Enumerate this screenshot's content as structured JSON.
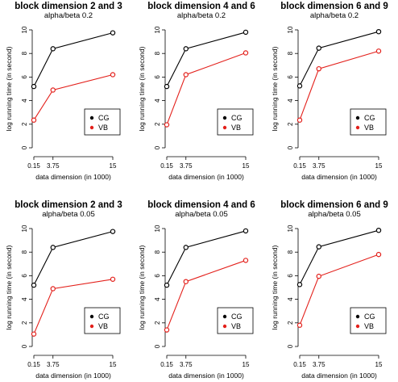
{
  "series_colors": {
    "CG": "#000000",
    "VB": "#e3201b"
  },
  "chart_data": [
    {
      "type": "line",
      "title": "block dimension 2 and 3",
      "subtitle": "alpha/beta 0.2",
      "xlabel": "data dimension (in 1000)",
      "ylabel": "log running time (in second)",
      "x": [
        0.15,
        3.75,
        15
      ],
      "x_ticks": [
        0.15,
        3.75,
        15
      ],
      "x_tick_labels": [
        "0.15",
        "3.75",
        "15"
      ],
      "y_ticks": [
        0,
        2,
        4,
        6,
        8,
        10
      ],
      "y_tick_labels": [
        "0",
        "2",
        "4",
        "6",
        "8",
        "10"
      ],
      "ylim": [
        0,
        10
      ],
      "legend_position": "bottom-right",
      "series": [
        {
          "name": "CG",
          "values": [
            5.2,
            8.4,
            9.75
          ]
        },
        {
          "name": "VB",
          "values": [
            2.35,
            4.9,
            6.2
          ]
        }
      ]
    },
    {
      "type": "line",
      "title": "block dimension 4 and 6",
      "subtitle": "alpha/beta 0.2",
      "xlabel": "data dimension (in 1000)",
      "ylabel": "log running time (in second)",
      "x": [
        0.15,
        3.75,
        15
      ],
      "x_ticks": [
        0.15,
        3.75,
        15
      ],
      "x_tick_labels": [
        "0.15",
        "3.75",
        "15"
      ],
      "y_ticks": [
        0,
        2,
        4,
        6,
        8,
        10
      ],
      "y_tick_labels": [
        "0",
        "2",
        "4",
        "6",
        "8",
        "10"
      ],
      "ylim": [
        0,
        10
      ],
      "legend_position": "bottom-right",
      "series": [
        {
          "name": "CG",
          "values": [
            5.2,
            8.4,
            9.8
          ]
        },
        {
          "name": "VB",
          "values": [
            1.95,
            6.2,
            8.05
          ]
        }
      ]
    },
    {
      "type": "line",
      "title": "block dimension 6 and 9",
      "subtitle": "alpha/beta 0.2",
      "xlabel": "data dimension (in 1000)",
      "ylabel": "log running time (in second)",
      "x": [
        0.15,
        3.75,
        15
      ],
      "x_ticks": [
        0.15,
        3.75,
        15
      ],
      "x_tick_labels": [
        "0.15",
        "3.75",
        "15"
      ],
      "y_ticks": [
        0,
        2,
        4,
        6,
        8,
        10
      ],
      "y_tick_labels": [
        "0",
        "2",
        "4",
        "6",
        "8",
        "10"
      ],
      "ylim": [
        0,
        10
      ],
      "legend_position": "bottom-right",
      "series": [
        {
          "name": "CG",
          "values": [
            5.25,
            8.45,
            9.85
          ]
        },
        {
          "name": "VB",
          "values": [
            2.35,
            6.7,
            8.2
          ]
        }
      ]
    },
    {
      "type": "line",
      "title": "block dimension 2 and 3",
      "subtitle": "alpha/beta 0.05",
      "xlabel": "data dimension (in 1000)",
      "ylabel": "log running time (in second)",
      "x": [
        0.15,
        3.75,
        15
      ],
      "x_ticks": [
        0.15,
        3.75,
        15
      ],
      "x_tick_labels": [
        "0.15",
        "3.75",
        "15"
      ],
      "y_ticks": [
        0,
        2,
        4,
        6,
        8,
        10
      ],
      "y_tick_labels": [
        "0",
        "2",
        "4",
        "6",
        "8",
        "10"
      ],
      "ylim": [
        0,
        10
      ],
      "legend_position": "bottom-right",
      "series": [
        {
          "name": "CG",
          "values": [
            5.2,
            8.4,
            9.75
          ]
        },
        {
          "name": "VB",
          "values": [
            1.05,
            4.9,
            5.7
          ]
        }
      ]
    },
    {
      "type": "line",
      "title": "block dimension 4 and 6",
      "subtitle": "alpha/beta 0.05",
      "xlabel": "data dimension (in 1000)",
      "ylabel": "log running time (in second)",
      "x": [
        0.15,
        3.75,
        15
      ],
      "x_ticks": [
        0.15,
        3.75,
        15
      ],
      "x_tick_labels": [
        "0.15",
        "3.75",
        "15"
      ],
      "y_ticks": [
        0,
        2,
        4,
        6,
        8,
        10
      ],
      "y_tick_labels": [
        "0",
        "2",
        "4",
        "6",
        "8",
        "10"
      ],
      "ylim": [
        0,
        10
      ],
      "legend_position": "bottom-right",
      "series": [
        {
          "name": "CG",
          "values": [
            5.2,
            8.4,
            9.8
          ]
        },
        {
          "name": "VB",
          "values": [
            1.4,
            5.5,
            7.3
          ]
        }
      ]
    },
    {
      "type": "line",
      "title": "block dimension 6 and 9",
      "subtitle": "alpha/beta 0.05",
      "xlabel": "data dimension (in 1000)",
      "ylabel": "log running time (in second)",
      "x": [
        0.15,
        3.75,
        15
      ],
      "x_ticks": [
        0.15,
        3.75,
        15
      ],
      "x_tick_labels": [
        "0.15",
        "3.75",
        "15"
      ],
      "y_ticks": [
        0,
        2,
        4,
        6,
        8,
        10
      ],
      "y_tick_labels": [
        "0",
        "2",
        "4",
        "6",
        "8",
        "10"
      ],
      "ylim": [
        0,
        10
      ],
      "legend_position": "bottom-right",
      "series": [
        {
          "name": "CG",
          "values": [
            5.25,
            8.45,
            9.85
          ]
        },
        {
          "name": "VB",
          "values": [
            1.8,
            5.95,
            7.8
          ]
        }
      ]
    }
  ]
}
